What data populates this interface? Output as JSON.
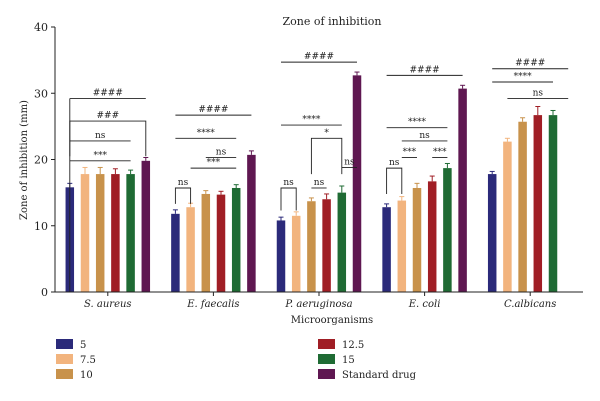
{
  "chart_data": {
    "type": "bar",
    "title": "Zone of inhibition",
    "xlabel": "Microorganisms",
    "ylabel": "Zone of inhibition (mm)",
    "ylim": [
      0,
      40
    ],
    "yticks": [
      "0",
      "10",
      "20",
      "30",
      "40"
    ],
    "categories": [
      "S. aureus",
      "E. faecalis",
      "P. aeruginosa",
      "E. coli",
      "C.albicans"
    ],
    "series": [
      {
        "name": "5",
        "color": "#2b2a7a",
        "values": [
          15.8,
          11.8,
          10.8,
          12.8,
          17.8
        ],
        "errors": [
          0.6,
          0.6,
          0.5,
          0.5,
          0.4
        ]
      },
      {
        "name": "7.5",
        "color": "#f2b47e",
        "values": [
          17.8,
          12.8,
          11.5,
          13.8,
          22.7
        ],
        "errors": [
          1.0,
          0.6,
          0.6,
          0.6,
          0.5
        ]
      },
      {
        "name": "10",
        "color": "#c8924b",
        "values": [
          17.8,
          14.8,
          13.7,
          15.7,
          25.7
        ],
        "errors": [
          1.0,
          0.5,
          0.5,
          0.7,
          0.6
        ]
      },
      {
        "name": "12.5",
        "color": "#a01e25",
        "values": [
          17.8,
          14.7,
          14.0,
          16.7,
          26.7
        ],
        "errors": [
          0.8,
          0.5,
          0.8,
          0.8,
          1.3
        ]
      },
      {
        "name": "15",
        "color": "#1f6b34",
        "values": [
          17.8,
          15.7,
          15.0,
          18.7,
          26.7
        ],
        "errors": [
          0.6,
          0.5,
          1.0,
          0.7,
          0.7
        ]
      },
      {
        "name": "Standard drug",
        "color": "#5f1751",
        "values": [
          19.8,
          20.7,
          32.7,
          30.7,
          null
        ],
        "errors": [
          0.5,
          0.6,
          0.5,
          0.5,
          null
        ]
      }
    ],
    "significance": [
      {
        "group": 0,
        "from": 0,
        "to": 5,
        "y": 29.2,
        "label": "####",
        "style": "line",
        "drop_to": 0
      },
      {
        "group": 0,
        "from": 0,
        "to": 5,
        "y": 25.8,
        "label": "###",
        "style": "bracket",
        "drop_to": 20.5
      },
      {
        "group": 0,
        "from": 0,
        "to": 4,
        "y": 22.8,
        "label": "ns",
        "style": "line"
      },
      {
        "group": 0,
        "from": 0,
        "to": 4,
        "y": 19.8,
        "label": "***",
        "style": "line"
      },
      {
        "group": 1,
        "from": 0,
        "to": 5,
        "y": 26.7,
        "label": "####",
        "style": "line"
      },
      {
        "group": 1,
        "from": 0,
        "to": 4,
        "y": 23.2,
        "label": "****",
        "style": "line"
      },
      {
        "group": 1,
        "from": 2,
        "to": 4,
        "y": 20.3,
        "label": "ns",
        "style": "line"
      },
      {
        "group": 1,
        "from": 1,
        "to": 4,
        "y": 18.7,
        "label": "***",
        "style": "line"
      },
      {
        "group": 1,
        "from": 0,
        "to": 1,
        "y": 15.7,
        "label": "ns",
        "style": "bracket",
        "drop_to": 13.3
      },
      {
        "group": 2,
        "from": 0,
        "to": 5,
        "y": 34.7,
        "label": "####",
        "style": "line"
      },
      {
        "group": 2,
        "from": 0,
        "to": 4,
        "y": 25.2,
        "label": "****",
        "style": "line"
      },
      {
        "group": 2,
        "from": 2,
        "to": 4,
        "y": 23.2,
        "label": "*",
        "style": "bracket",
        "drop_to": 17.8
      },
      {
        "group": 2,
        "from": 4,
        "to": 5,
        "y": 18.8,
        "label": "ns",
        "style": "line"
      },
      {
        "group": 2,
        "from": 0,
        "to": 1,
        "y": 15.7,
        "label": "ns",
        "style": "bracket",
        "drop_to": 12.3
      },
      {
        "group": 2,
        "from": 2,
        "to": 3,
        "y": 15.7,
        "label": "ns",
        "style": "line"
      },
      {
        "group": 3,
        "from": 0,
        "to": 5,
        "y": 32.7,
        "label": "####",
        "style": "line"
      },
      {
        "group": 3,
        "from": 0,
        "to": 4,
        "y": 24.8,
        "label": "****",
        "style": "line"
      },
      {
        "group": 3,
        "from": 1,
        "to": 4,
        "y": 22.8,
        "label": "ns",
        "style": "line"
      },
      {
        "group": 3,
        "from": 1,
        "to": 2,
        "y": 20.3,
        "label": "***",
        "style": "line"
      },
      {
        "group": 3,
        "from": 3,
        "to": 4,
        "y": 20.3,
        "label": "***",
        "style": "line"
      },
      {
        "group": 3,
        "from": 0,
        "to": 1,
        "y": 18.7,
        "label": "ns",
        "style": "bracket",
        "drop_to": 14.8
      },
      {
        "group": 4,
        "from": 0,
        "to": 5,
        "y": 33.7,
        "label": "####",
        "style": "line"
      },
      {
        "group": 4,
        "from": 0,
        "to": 4,
        "y": 31.7,
        "label": "****",
        "style": "line"
      },
      {
        "group": 4,
        "from": 1,
        "to": 5,
        "y": 29.2,
        "label": "ns",
        "style": "line"
      }
    ],
    "legend": {
      "placement": "bottom",
      "columns": [
        [
          "5",
          "7.5",
          "10"
        ],
        [
          "12.5",
          "15",
          "Standard drug"
        ]
      ]
    },
    "grid": false
  }
}
